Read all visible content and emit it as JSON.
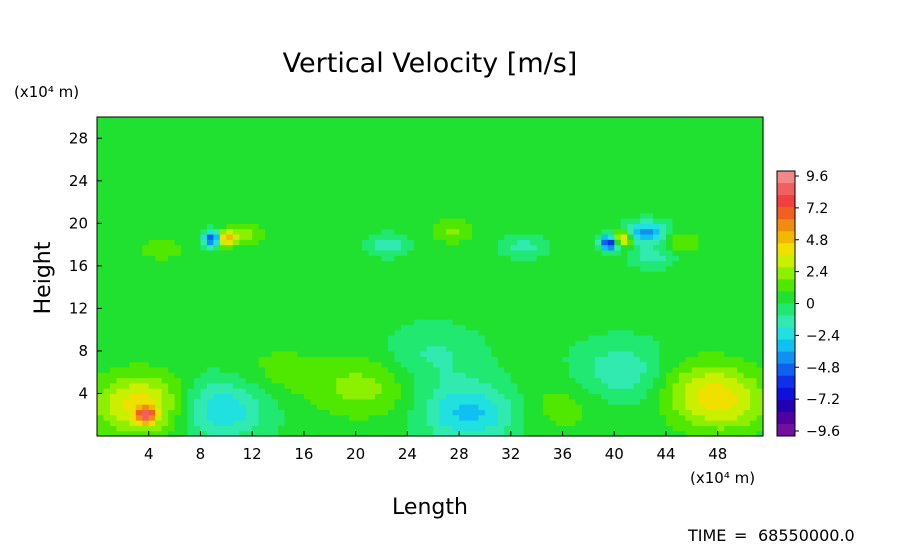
{
  "chart_data": {
    "type": "heatmap",
    "title": "Vertical Velocity [m/s]",
    "xlabel": "Length",
    "ylabel": "Height",
    "x_unit": "(x10⁴ m)",
    "y_unit": "(x10⁴ m)",
    "time_label": "TIME",
    "time_value": "68550000.0",
    "xlim": [
      0,
      51.5
    ],
    "ylim": [
      0,
      30
    ],
    "xticks": [
      4,
      8,
      12,
      16,
      20,
      24,
      28,
      32,
      36,
      40,
      44,
      48
    ],
    "yticks": [
      4,
      8,
      12,
      16,
      20,
      24,
      28
    ],
    "background_value": 0.3,
    "colorbar": {
      "ticks": [
        9.6,
        7.2,
        4.8,
        2.4,
        0,
        -2.4,
        -4.8,
        -7.2,
        -9.6
      ],
      "labels": [
        "9.6",
        "7.2",
        "4.8",
        "2.4",
        "0",
        "−2.4",
        "−4.8",
        "−7.2",
        "−9.6"
      ],
      "colors_high_to_low": [
        "#f08888",
        "#f06060",
        "#f04040",
        "#f06020",
        "#f08c10",
        "#f0b800",
        "#f0e000",
        "#c8f000",
        "#8cf000",
        "#50e800",
        "#20e030",
        "#20e870",
        "#30eab0",
        "#20e0e0",
        "#10c0f0",
        "#1090f0",
        "#1060f0",
        "#1030e8",
        "#1010d8",
        "#2000b0",
        "#5000a0",
        "#7010a0"
      ]
    },
    "features": [
      {
        "label": "updraft core",
        "x": 3.8,
        "y": 2.0,
        "value": 5.4
      },
      {
        "label": "updraft",
        "x": 3.5,
        "y": 3.0,
        "value": 3.8
      },
      {
        "label": "updraft",
        "x": 20.5,
        "y": 4.6,
        "value": 1.8
      },
      {
        "label": "updraft",
        "x": 48.5,
        "y": 3.2,
        "value": 2.8
      },
      {
        "label": "updraft",
        "x": 46.5,
        "y": 4.8,
        "value": 1.6
      },
      {
        "label": "downdraft",
        "x": 9.5,
        "y": 2.6,
        "value": -3.0
      },
      {
        "label": "downdraft",
        "x": 28.8,
        "y": 2.2,
        "value": -3.2
      },
      {
        "label": "downdraft",
        "x": 40.5,
        "y": 6.0,
        "value": -2.0
      },
      {
        "label": "downdraft",
        "x": 26.0,
        "y": 7.6,
        "value": -1.3
      },
      {
        "label": "updraft",
        "x": 36.0,
        "y": 3.0,
        "value": 1.0
      },
      {
        "label": "updraft",
        "x": 14.0,
        "y": 6.0,
        "value": 0.9
      },
      {
        "label": "upper dipole low",
        "x": 9.0,
        "y": 18.6,
        "value": -7.0
      },
      {
        "label": "upper dipole high",
        "x": 9.9,
        "y": 18.6,
        "value": 5.5
      },
      {
        "label": "upper dipole low",
        "x": 39.6,
        "y": 18.2,
        "value": -7.2
      },
      {
        "label": "upper dipole high",
        "x": 40.6,
        "y": 18.6,
        "value": 5.0
      },
      {
        "label": "upper cell",
        "x": 42.5,
        "y": 19.2,
        "value": -4.0
      },
      {
        "label": "wave",
        "x": 11.5,
        "y": 19.0,
        "value": 1.6
      },
      {
        "label": "wave",
        "x": 22.5,
        "y": 18.0,
        "value": -1.6
      },
      {
        "label": "wave",
        "x": 27.5,
        "y": 19.3,
        "value": 1.8
      },
      {
        "label": "wave",
        "x": 33.0,
        "y": 17.8,
        "value": -1.5
      },
      {
        "label": "wave",
        "x": 45.0,
        "y": 18.2,
        "value": 1.5
      },
      {
        "label": "wave",
        "x": 43.0,
        "y": 17.0,
        "value": -1.8
      },
      {
        "label": "wave",
        "x": 5.0,
        "y": 17.6,
        "value": 1.4
      }
    ]
  }
}
